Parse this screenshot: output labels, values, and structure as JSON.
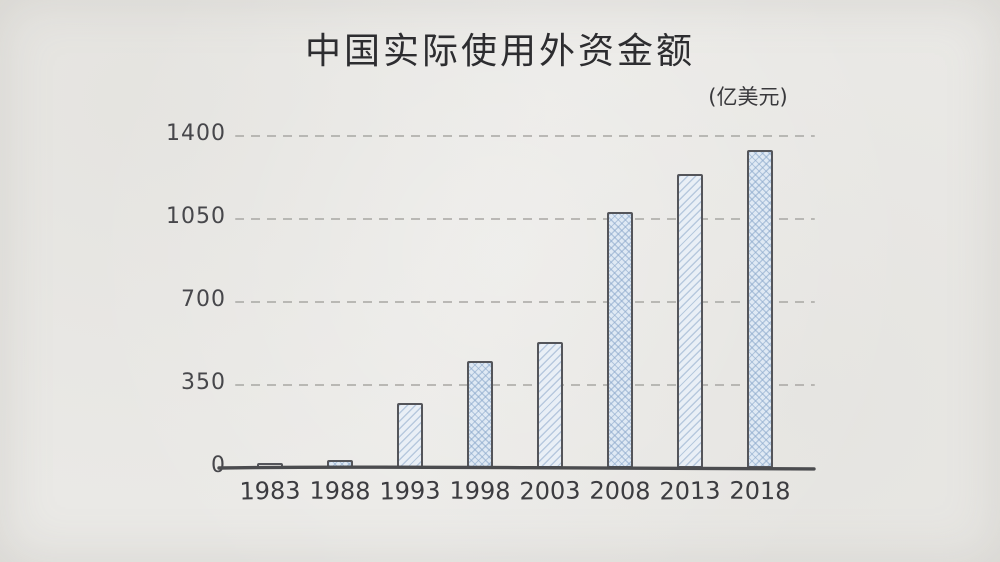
{
  "title": "中国实际使用外资金额",
  "unit_label": "(亿美元)",
  "chart_data": {
    "type": "bar",
    "title": "中国实际使用外资金额",
    "unit": "亿美元",
    "categories": [
      "1983",
      "1988",
      "1993",
      "1998",
      "2003",
      "2008",
      "2013",
      "2018"
    ],
    "values": [
      22,
      32,
      275,
      450,
      530,
      1080,
      1240,
      1340
    ],
    "xlabel": "",
    "ylabel": "(亿美元)",
    "ylim": [
      0,
      1400
    ],
    "yticks": [
      0,
      350,
      700,
      1050,
      1400
    ],
    "grid": "horizontal-dashed",
    "legend": "none",
    "bar_patterns": [
      "plain",
      "crosshatch",
      "diagonal",
      "crosshatch",
      "diagonal",
      "crosshatch",
      "diagonal",
      "crosshatch"
    ]
  },
  "style": {
    "paper_bg": "#eae9e6",
    "grid_color": "#a8a7a3",
    "axis_color": "#4b4c4f",
    "bar_outline": "#54555a",
    "bar_fill": "#e3ecf5",
    "hatch_color": "#a9c2da",
    "text_color": "#3a3a3d"
  }
}
